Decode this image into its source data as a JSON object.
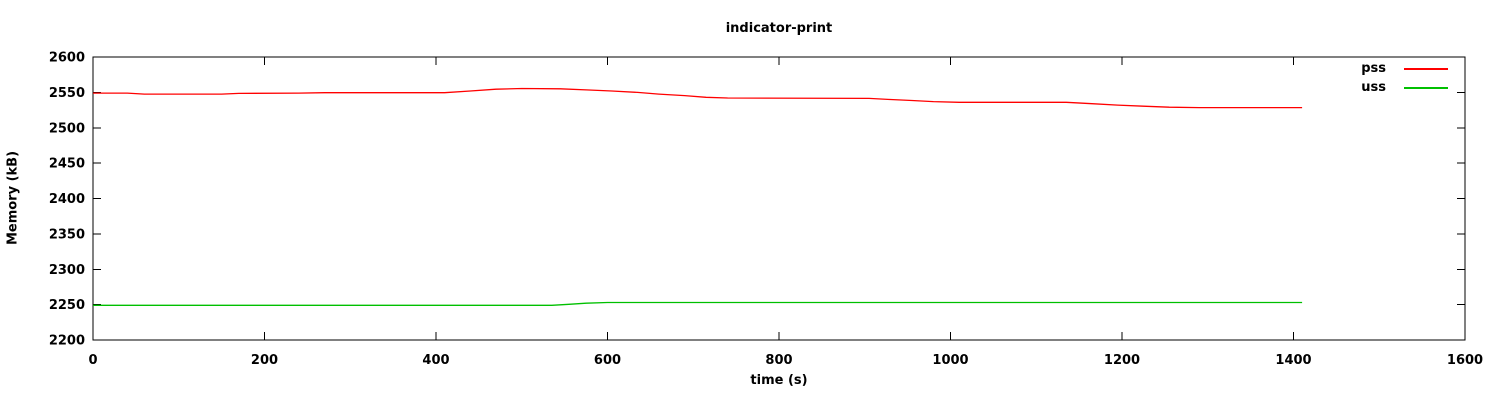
{
  "chart_data": {
    "type": "line",
    "title": "indicator-print",
    "xlabel": "time (s)",
    "ylabel": "Memory (kB)",
    "xlim": [
      0,
      1600
    ],
    "ylim": [
      2200,
      2600
    ],
    "xticks": [
      0,
      200,
      400,
      600,
      800,
      1000,
      1200,
      1400,
      1600
    ],
    "yticks": [
      2200,
      2250,
      2300,
      2350,
      2400,
      2450,
      2500,
      2550,
      2600
    ],
    "grid": false,
    "legend_position": "top-right-inside",
    "border_color": "#000000",
    "text_color": "#000000",
    "background_color": "#ffffff",
    "series": [
      {
        "name": "pss",
        "color": "#ff0000",
        "points": [
          [
            0,
            2549
          ],
          [
            40,
            2549
          ],
          [
            60,
            2547.5
          ],
          [
            150,
            2547.5
          ],
          [
            170,
            2548.5
          ],
          [
            240,
            2549
          ],
          [
            270,
            2549.5
          ],
          [
            410,
            2549.5
          ],
          [
            440,
            2552
          ],
          [
            470,
            2554.5
          ],
          [
            500,
            2555.5
          ],
          [
            545,
            2555
          ],
          [
            575,
            2553.5
          ],
          [
            605,
            2552
          ],
          [
            635,
            2550
          ],
          [
            660,
            2547.5
          ],
          [
            690,
            2545.5
          ],
          [
            715,
            2543
          ],
          [
            740,
            2542
          ],
          [
            905,
            2541.5
          ],
          [
            930,
            2540
          ],
          [
            955,
            2538.5
          ],
          [
            980,
            2537
          ],
          [
            1010,
            2536
          ],
          [
            1135,
            2536
          ],
          [
            1165,
            2534
          ],
          [
            1195,
            2532
          ],
          [
            1225,
            2530.5
          ],
          [
            1255,
            2529
          ],
          [
            1290,
            2528.5
          ],
          [
            1410,
            2528.5
          ]
        ]
      },
      {
        "name": "uss",
        "color": "#00c000",
        "points": [
          [
            0,
            2249
          ],
          [
            535,
            2249
          ],
          [
            555,
            2250.5
          ],
          [
            575,
            2252
          ],
          [
            600,
            2253
          ],
          [
            1410,
            2253
          ]
        ]
      }
    ]
  }
}
